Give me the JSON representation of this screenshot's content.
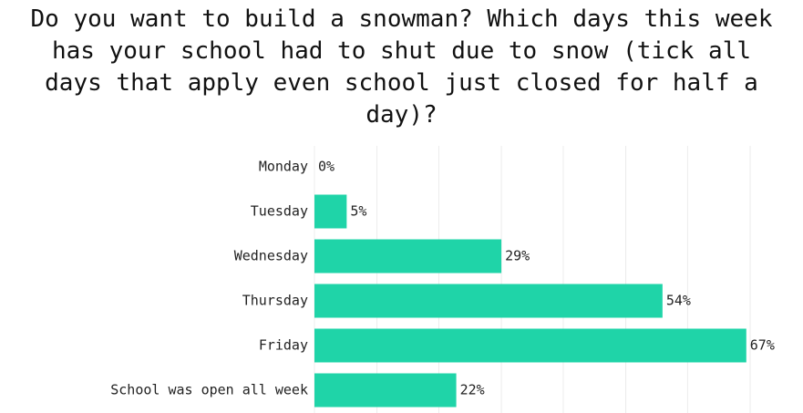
{
  "chart_data": {
    "type": "bar",
    "orientation": "horizontal",
    "title": "Do you want to build a snowman? Which days this week has your school had to shut due to snow (tick all days that apply even school just closed for half a day)?",
    "categories": [
      "Monday",
      "Tuesday",
      "Wednesday",
      "Thursday",
      "Friday",
      "School was open all week"
    ],
    "values": [
      0,
      5,
      29,
      54,
      67,
      22
    ],
    "value_labels": [
      "0%",
      "5%",
      "29%",
      "54%",
      "67%",
      "22%"
    ],
    "color": "#1fd4a8",
    "xlim": [
      0,
      70
    ],
    "xticks": [
      0,
      9.7,
      19.3,
      29,
      38.6,
      48.3,
      57.9,
      67.6
    ],
    "grid": true
  }
}
